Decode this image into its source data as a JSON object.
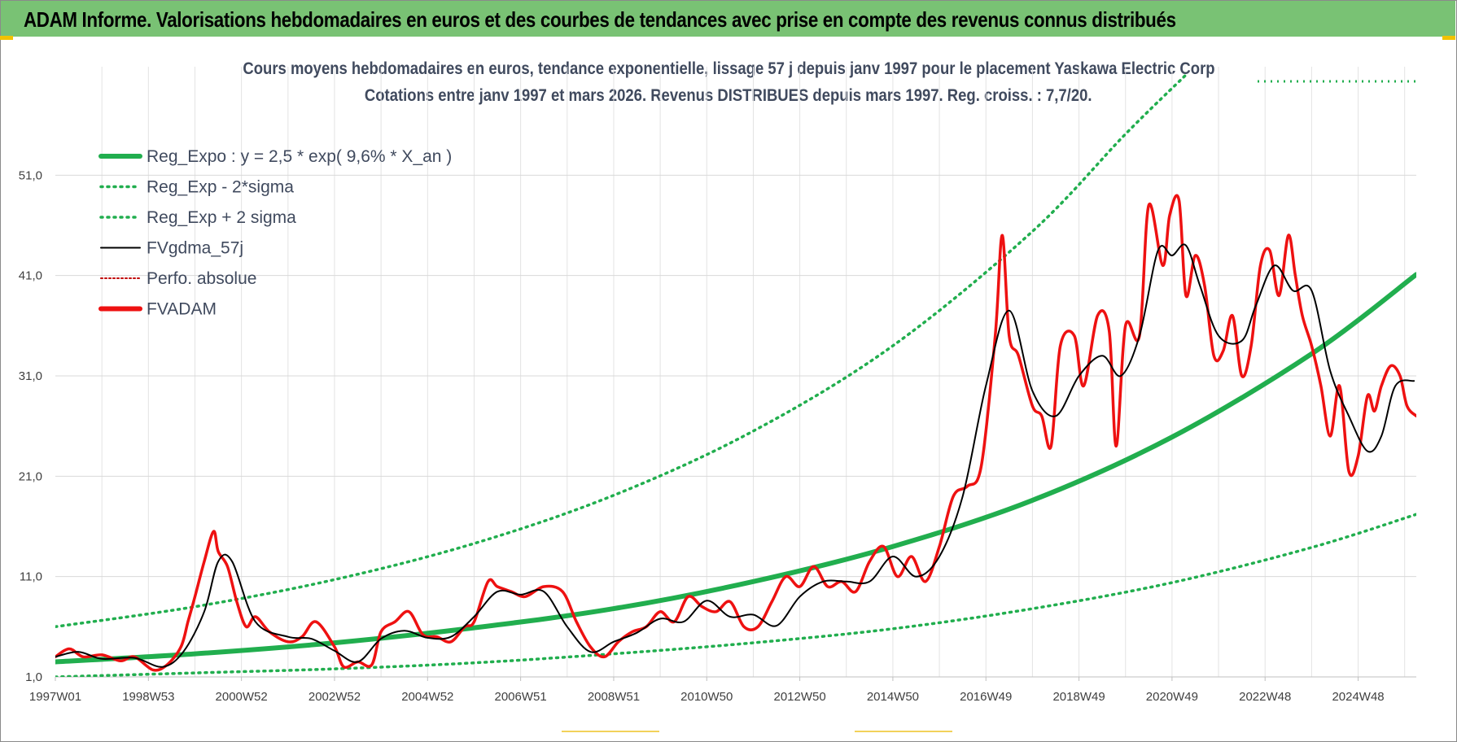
{
  "banner": {
    "text": "ADAM Informe. Valorisations hebdomadaires en euros et des courbes de tendances avec prise en compte des revenus connus distribués"
  },
  "colors": {
    "banner_bg": "#79c274",
    "trend": "#21ae4e",
    "sigma": "#21ae4e",
    "smooth": "#000000",
    "adam": "#ee1111",
    "perf": "#c00000"
  },
  "chart_data": {
    "type": "line",
    "title": "Cours moyens hebdomadaires en euros, tendance exponentielle, lissage 57 j depuis janv 1997  pour le placement Yaskawa Electric Corp",
    "subtitle": "Cotations entre janv 1997 et mars 2026. Revenus DISTRIBUES depuis mars 1997.  Reg. croiss. : 7,7/20.",
    "xlabel": "",
    "ylabel": "",
    "x_tick_labels": [
      "1997W01",
      "1998W53",
      "2000W52",
      "2002W52",
      "2004W52",
      "2006W51",
      "2008W51",
      "2010W50",
      "2012W50",
      "2014W50",
      "2016W49",
      "2018W49",
      "2020W49",
      "2022W48",
      "2024W48"
    ],
    "x_tick_years": [
      1997.0,
      1999.0,
      2001.0,
      2003.0,
      2005.0,
      2007.0,
      2009.0,
      2011.0,
      2013.0,
      2015.0,
      2017.0,
      2019.0,
      2021.0,
      2023.0,
      2025.0
    ],
    "y_tick_labels": [
      "1,0",
      "11,0",
      "21,0",
      "31,0",
      "41,0",
      "51,0"
    ],
    "y_ticks": [
      1,
      11,
      21,
      31,
      41,
      51
    ],
    "ylim": [
      1,
      61
    ],
    "xlim": [
      1997.0,
      2026.25
    ],
    "grid": true,
    "legend_position": "top-left",
    "legend": [
      {
        "label": "Reg_Expo : y = 2,5 * exp( 9,6% *  X_an )",
        "style": "solid-thick",
        "color": "#21ae4e"
      },
      {
        "label": "Reg_Exp - 2*sigma",
        "style": "dotted",
        "color": "#21ae4e"
      },
      {
        "label": "Reg_Exp + 2 sigma",
        "style": "dotted",
        "color": "#21ae4e"
      },
      {
        "label": "FVgdma_57j",
        "style": "solid",
        "color": "#000000"
      },
      {
        "label": "Perfo. absolue",
        "style": "dotted",
        "color": "#c00000"
      },
      {
        "label": "FVADAM",
        "style": "solid-thick",
        "color": "#ee1111"
      }
    ],
    "series": [
      {
        "name": "Reg_Expo : y = 2,5 * exp( 9,6% *  X_an )",
        "x": [
          1997.0,
          2000.0,
          2003.0,
          2006.0,
          2009.0,
          2012.0,
          2015.0,
          2018.0,
          2021.0,
          2024.0,
          2026.25
        ],
        "y": [
          2.5,
          3.3,
          4.4,
          5.9,
          7.8,
          10.5,
          14.0,
          18.6,
          24.9,
          33.2,
          41.1
        ]
      },
      {
        "name": "Reg_Exp - 2*sigma",
        "x": [
          1997.0,
          2000.0,
          2003.0,
          2006.0,
          2009.0,
          2012.0,
          2015.0,
          2018.0,
          2021.0,
          2024.0,
          2026.25
        ],
        "y": [
          1.0,
          1.4,
          1.8,
          2.4,
          3.3,
          4.4,
          5.8,
          7.8,
          10.4,
          13.9,
          17.2
        ]
      },
      {
        "name": "Reg_Exp + 2 sigma",
        "x": [
          1997.0,
          2000.0,
          2003.0,
          2006.0,
          2009.0,
          2012.0,
          2015.0,
          2018.0,
          2020.0,
          2021.3
        ],
        "y": [
          6.0,
          8.0,
          10.7,
          14.3,
          19.1,
          25.5,
          34.0,
          45.4,
          55.1,
          61.0
        ]
      },
      {
        "name": "FVgdma_57j",
        "x": [
          1997.0,
          1997.5,
          1998.0,
          1998.7,
          1999.3,
          1999.75,
          2000.2,
          2000.5,
          2000.8,
          2001.3,
          2002.0,
          2002.5,
          2003.0,
          2003.5,
          2004.0,
          2004.5,
          2005.0,
          2005.5,
          2006.0,
          2006.5,
          2007.0,
          2007.5,
          2008.0,
          2008.5,
          2009.0,
          2009.5,
          2010.0,
          2010.5,
          2011.0,
          2011.5,
          2012.0,
          2012.5,
          2013.0,
          2013.5,
          2014.0,
          2014.5,
          2015.0,
          2015.5,
          2016.0,
          2016.5,
          2017.0,
          2017.5,
          2018.0,
          2018.5,
          2019.0,
          2019.5,
          2019.9,
          2020.3,
          2020.7,
          2021.0,
          2021.3,
          2021.6,
          2022.0,
          2022.5,
          2022.8,
          2023.2,
          2023.6,
          2024.0,
          2024.4,
          2024.8,
          2025.2,
          2025.5,
          2025.8,
          2026.2
        ],
        "y": [
          3.0,
          3.5,
          2.8,
          2.9,
          2.0,
          3.5,
          7.5,
          12.5,
          12.5,
          6.5,
          5.0,
          4.8,
          3.6,
          2.5,
          4.8,
          5.6,
          4.9,
          5.0,
          7.0,
          9.5,
          9.2,
          9.5,
          6.0,
          3.5,
          4.5,
          5.4,
          6.8,
          6.5,
          8.6,
          7.0,
          7.2,
          6.1,
          9.0,
          10.5,
          10.5,
          10.5,
          13.0,
          11.0,
          13.0,
          19.0,
          30.0,
          37.5,
          29.5,
          27.0,
          31.0,
          33.0,
          31.0,
          35.0,
          43.5,
          43.0,
          44.0,
          40.0,
          35.0,
          34.5,
          38.0,
          42.0,
          39.5,
          39.5,
          31.5,
          27.0,
          23.5,
          25.0,
          30.0,
          30.5
        ]
      },
      {
        "name": "FVADAM",
        "x": [
          1997.0,
          1997.3,
          1997.6,
          1998.0,
          1998.4,
          1998.7,
          1999.1,
          1999.4,
          1999.7,
          1999.85,
          2000.0,
          2000.2,
          2000.4,
          2000.5,
          2000.7,
          2000.9,
          2001.1,
          2001.3,
          2001.6,
          2002.0,
          2002.3,
          2002.6,
          2003.0,
          2003.2,
          2003.5,
          2003.8,
          2004.0,
          2004.3,
          2004.6,
          2004.9,
          2005.2,
          2005.5,
          2005.8,
          2006.0,
          2006.3,
          2006.5,
          2006.8,
          2007.1,
          2007.5,
          2007.9,
          2008.2,
          2008.5,
          2008.8,
          2009.1,
          2009.4,
          2009.7,
          2010.0,
          2010.3,
          2010.6,
          2010.9,
          2011.2,
          2011.5,
          2011.8,
          2012.1,
          2012.4,
          2012.7,
          2013.0,
          2013.3,
          2013.6,
          2013.9,
          2014.2,
          2014.5,
          2014.8,
          2015.1,
          2015.4,
          2015.7,
          2016.0,
          2016.3,
          2016.6,
          2016.9,
          2017.2,
          2017.35,
          2017.5,
          2017.7,
          2018.0,
          2018.2,
          2018.4,
          2018.6,
          2018.9,
          2019.1,
          2019.4,
          2019.65,
          2019.8,
          2020.0,
          2020.3,
          2020.5,
          2020.8,
          2020.95,
          2021.15,
          2021.3,
          2021.5,
          2021.7,
          2021.9,
          2022.1,
          2022.3,
          2022.5,
          2022.7,
          2022.9,
          2023.1,
          2023.3,
          2023.5,
          2023.65,
          2023.8,
          2024.0,
          2024.2,
          2024.4,
          2024.6,
          2024.8,
          2025.0,
          2025.2,
          2025.35,
          2025.5,
          2025.7,
          2025.9,
          2026.05,
          2026.25
        ],
        "y": [
          3.0,
          3.8,
          3.0,
          3.2,
          2.6,
          3.0,
          1.7,
          2.2,
          4.0,
          6.5,
          9.0,
          12.5,
          15.5,
          13.5,
          12.0,
          8.5,
          6.0,
          7.0,
          5.5,
          4.5,
          5.0,
          6.5,
          4.0,
          2.0,
          2.5,
          2.2,
          5.5,
          6.5,
          7.5,
          5.2,
          5.0,
          4.5,
          6.0,
          6.5,
          10.5,
          10.0,
          9.5,
          9.0,
          10.0,
          9.5,
          6.5,
          4.0,
          3.0,
          4.5,
          5.5,
          6.0,
          7.5,
          6.5,
          9.0,
          8.0,
          7.5,
          8.5,
          6.0,
          6.0,
          8.5,
          11.0,
          10.0,
          12.0,
          10.0,
          10.5,
          9.5,
          12.5,
          14.0,
          11.0,
          13.0,
          10.5,
          14.0,
          19.0,
          20.0,
          22.0,
          35.0,
          45.0,
          35.0,
          33.0,
          28.0,
          27.0,
          24.0,
          34.0,
          35.0,
          30.0,
          37.0,
          35.5,
          24.0,
          36.0,
          35.0,
          48.0,
          42.0,
          47.0,
          48.5,
          39.0,
          43.0,
          40.0,
          33.0,
          33.5,
          37.0,
          31.0,
          34.0,
          42.0,
          43.5,
          39.0,
          45.0,
          41.0,
          37.0,
          34.0,
          30.0,
          25.0,
          30.0,
          21.5,
          23.0,
          29.0,
          27.5,
          30.0,
          32.0,
          31.0,
          28.0,
          27.0
        ]
      }
    ]
  }
}
